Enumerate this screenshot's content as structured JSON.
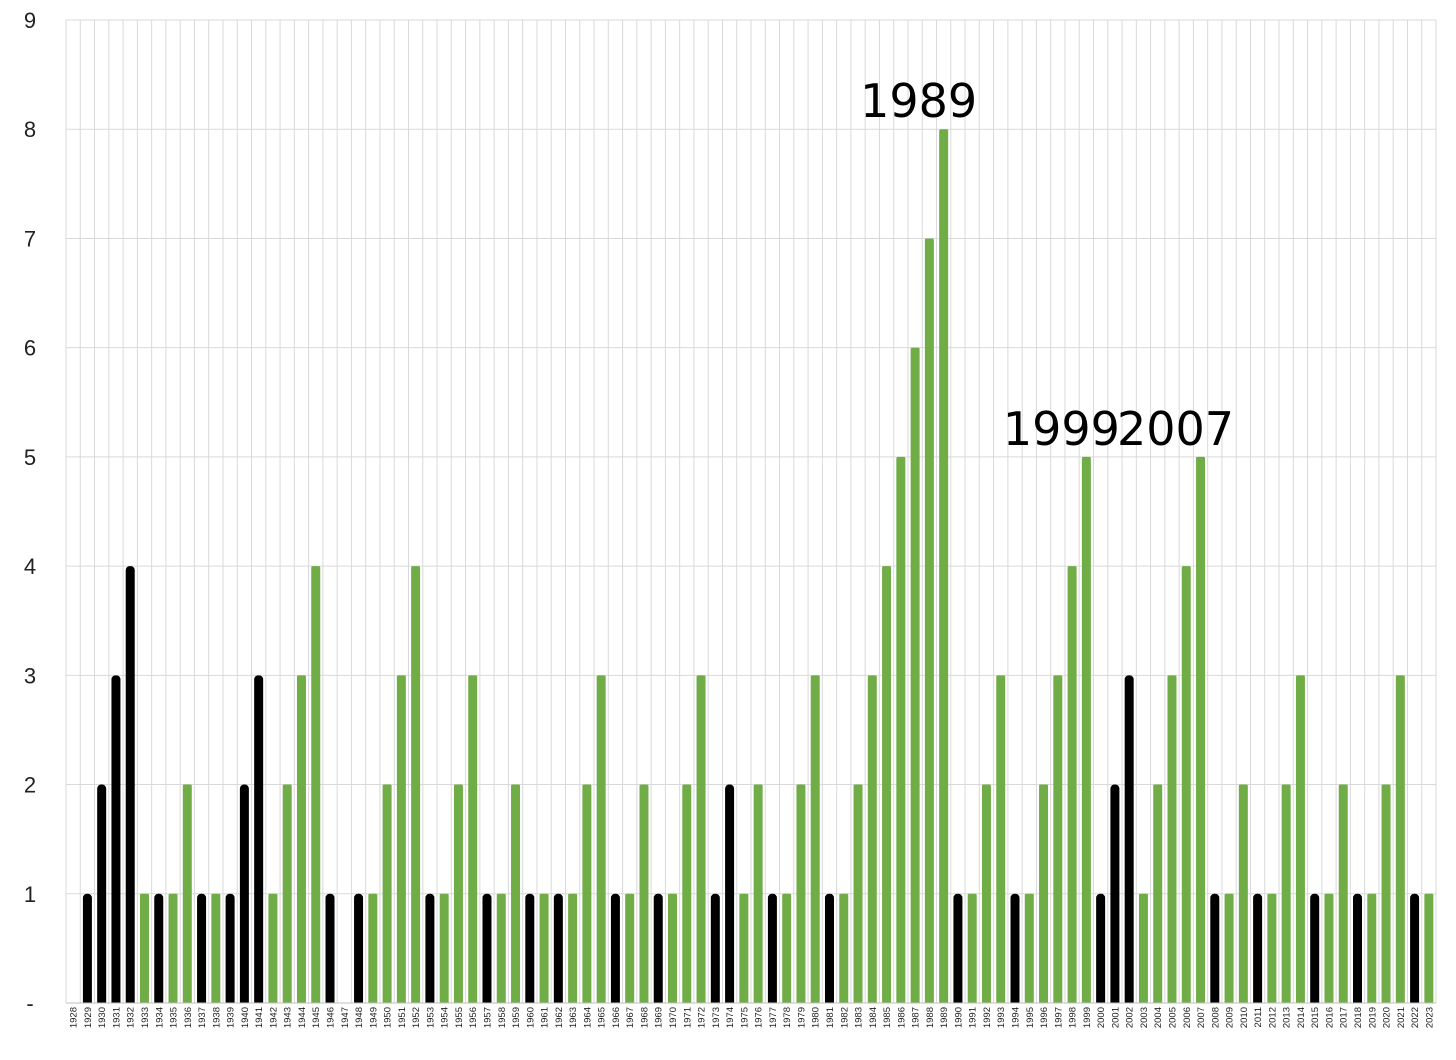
{
  "chart_data": {
    "type": "bar",
    "title": "",
    "xlabel": "",
    "ylabel": "",
    "ylim": [
      0,
      9
    ],
    "yticks": [
      "-",
      "1",
      "2",
      "3",
      "4",
      "5",
      "6",
      "7",
      "8",
      "9"
    ],
    "grid": true,
    "legend": "none",
    "colors": {
      "black": "#000000",
      "green": "#70ad47",
      "grid": "#d9d9d9"
    },
    "categories": [
      "1928",
      "1929",
      "1930",
      "1931",
      "1932",
      "1933",
      "1934",
      "1935",
      "1936",
      "1937",
      "1938",
      "1939",
      "1940",
      "1941",
      "1942",
      "1943",
      "1944",
      "1945",
      "1946",
      "1947",
      "1948",
      "1949",
      "1950",
      "1951",
      "1952",
      "1953",
      "1954",
      "1955",
      "1956",
      "1957",
      "1958",
      "1959",
      "1960",
      "1961",
      "1962",
      "1963",
      "1964",
      "1965",
      "1966",
      "1967",
      "1968",
      "1969",
      "1970",
      "1971",
      "1972",
      "1973",
      "1974",
      "1975",
      "1976",
      "1977",
      "1978",
      "1979",
      "1980",
      "1981",
      "1982",
      "1983",
      "1984",
      "1985",
      "1986",
      "1987",
      "1988",
      "1989",
      "1990",
      "1991",
      "1992",
      "1993",
      "1994",
      "1995",
      "1996",
      "1997",
      "1998",
      "1999",
      "2000",
      "2001",
      "2002",
      "2003",
      "2004",
      "2005",
      "2006",
      "2007",
      "2008",
      "2009",
      "2010",
      "2011",
      "2012",
      "2013",
      "2014",
      "2015",
      "2016",
      "2017",
      "2018",
      "2019",
      "2020",
      "2021",
      "2022",
      "2023"
    ],
    "values": [
      0,
      1,
      2,
      3,
      4,
      1,
      1,
      1,
      2,
      1,
      1,
      1,
      2,
      3,
      1,
      2,
      3,
      4,
      1,
      0,
      1,
      1,
      2,
      3,
      4,
      1,
      1,
      2,
      3,
      1,
      1,
      2,
      1,
      1,
      1,
      1,
      2,
      3,
      1,
      1,
      2,
      1,
      1,
      2,
      3,
      1,
      2,
      1,
      2,
      1,
      1,
      2,
      3,
      1,
      1,
      2,
      3,
      4,
      5,
      6,
      7,
      8,
      1,
      1,
      2,
      3,
      1,
      1,
      2,
      3,
      4,
      5,
      1,
      2,
      3,
      1,
      2,
      3,
      4,
      5,
      1,
      1,
      2,
      1,
      1,
      2,
      3,
      1,
      1,
      2,
      1,
      1,
      2,
      3,
      1,
      1
    ],
    "bar_colors": [
      "green",
      "black",
      "black",
      "black",
      "black",
      "green",
      "black",
      "green",
      "green",
      "black",
      "green",
      "black",
      "black",
      "black",
      "green",
      "green",
      "green",
      "green",
      "black",
      "green",
      "black",
      "green",
      "green",
      "green",
      "green",
      "black",
      "green",
      "green",
      "green",
      "black",
      "green",
      "green",
      "black",
      "green",
      "black",
      "green",
      "green",
      "green",
      "black",
      "green",
      "green",
      "black",
      "green",
      "green",
      "green",
      "black",
      "black",
      "green",
      "green",
      "black",
      "green",
      "green",
      "green",
      "black",
      "green",
      "green",
      "green",
      "green",
      "green",
      "green",
      "green",
      "green",
      "black",
      "green",
      "green",
      "green",
      "black",
      "green",
      "green",
      "green",
      "green",
      "green",
      "black",
      "black",
      "black",
      "green",
      "green",
      "green",
      "green",
      "green",
      "black",
      "green",
      "green",
      "black",
      "green",
      "green",
      "green",
      "black",
      "green",
      "green",
      "black",
      "green",
      "green",
      "green",
      "black",
      "green"
    ],
    "annotations": [
      {
        "text": "1989",
        "category": "1989"
      },
      {
        "text": "1999",
        "category": "1999"
      },
      {
        "text": "2007",
        "category": "2007"
      }
    ]
  }
}
